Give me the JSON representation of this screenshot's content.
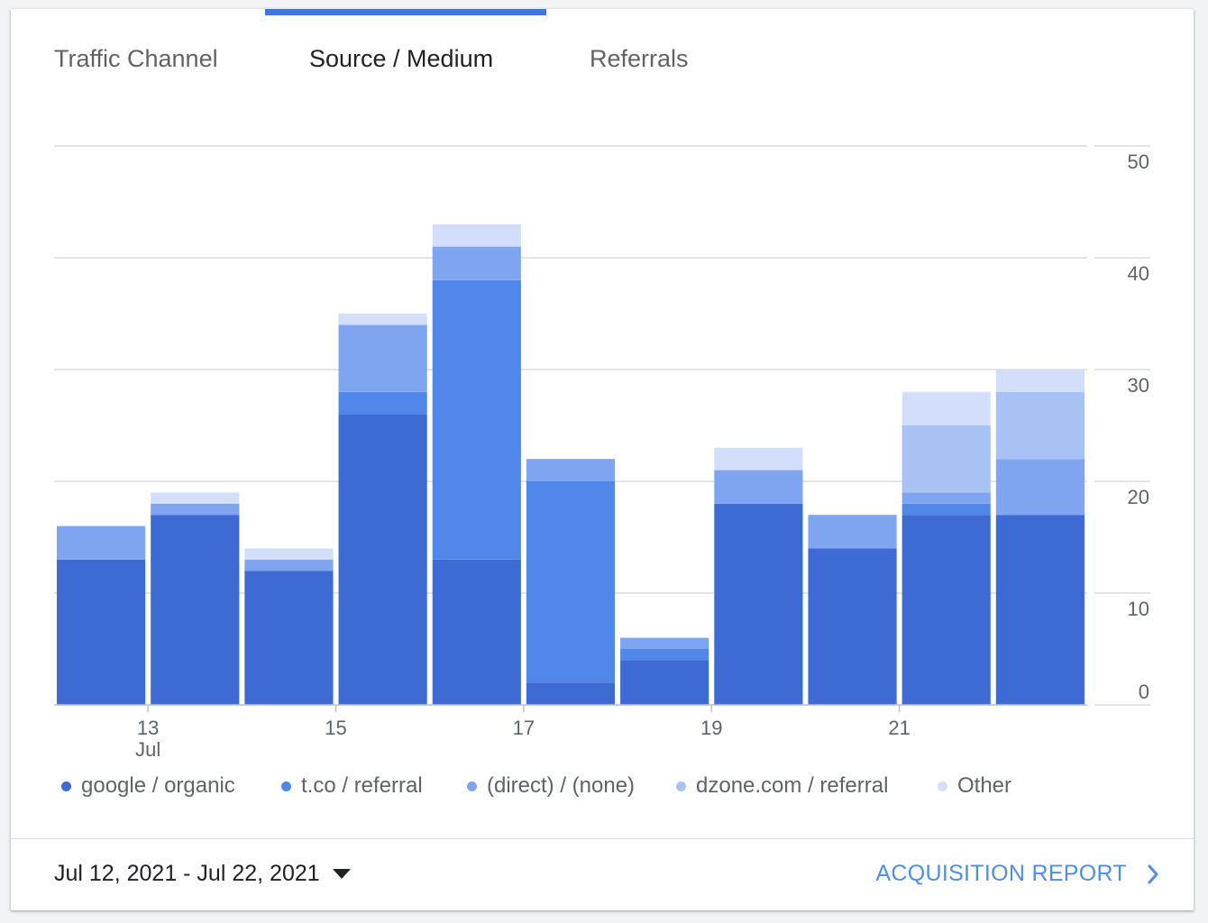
{
  "tabs": [
    {
      "label": "Traffic Channel",
      "active": false
    },
    {
      "label": "Source / Medium",
      "active": true
    },
    {
      "label": "Referrals",
      "active": false
    }
  ],
  "chart_data": {
    "type": "bar",
    "stacked": true,
    "categories": [
      "Jul 12",
      "Jul 13",
      "Jul 14",
      "Jul 15",
      "Jul 16",
      "Jul 17",
      "Jul 18",
      "Jul 19",
      "Jul 20",
      "Jul 21",
      "Jul 22"
    ],
    "x_tick_labels": [
      {
        "category": 1,
        "label": "13",
        "sublabel": "Jul"
      },
      {
        "category": 3,
        "label": "15",
        "sublabel": ""
      },
      {
        "category": 5,
        "label": "17",
        "sublabel": ""
      },
      {
        "category": 7,
        "label": "19",
        "sublabel": ""
      },
      {
        "category": 9,
        "label": "21",
        "sublabel": ""
      }
    ],
    "series": [
      {
        "name": "google / organic",
        "color": "#3d6bd3",
        "values": [
          13,
          17,
          12,
          26,
          13,
          2,
          4,
          18,
          14,
          17,
          17
        ]
      },
      {
        "name": "t.co / referral",
        "color": "#5087e8",
        "values": [
          0,
          0,
          0,
          2,
          25,
          18,
          1,
          0,
          0,
          1,
          0
        ]
      },
      {
        "name": "(direct) / (none)",
        "color": "#80a5f0",
        "values": [
          3,
          1,
          1,
          6,
          3,
          2,
          1,
          3,
          3,
          1,
          5
        ]
      },
      {
        "name": "dzone.com / referral",
        "color": "#a8c2f4",
        "values": [
          0,
          0,
          0,
          0,
          0,
          0,
          0,
          0,
          0,
          6,
          6
        ]
      },
      {
        "name": "Other",
        "color": "#d2defa",
        "values": [
          0,
          1,
          1,
          1,
          2,
          0,
          0,
          2,
          0,
          3,
          2
        ]
      }
    ],
    "y_axis": {
      "position": "right",
      "ticks": [
        0,
        10,
        20,
        30,
        40,
        50
      ],
      "ylim": [
        0,
        50
      ]
    },
    "grid": true,
    "legend_position": "bottom"
  },
  "footer": {
    "date_range": "Jul 12, 2021 - Jul 22, 2021",
    "report_link": "ACQUISITION REPORT"
  }
}
